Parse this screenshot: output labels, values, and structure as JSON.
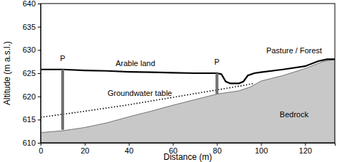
{
  "chart_data": {
    "type": "line",
    "xlabel": "Distance (m)",
    "ylabel": "Altitude (m a.s.l.)",
    "xlim": [
      0,
      133.5
    ],
    "ylim": [
      610,
      640
    ],
    "xticks": [
      0,
      20,
      40,
      60,
      80,
      100,
      120
    ],
    "yticks": [
      610,
      615,
      620,
      625,
      630,
      635,
      640
    ],
    "grid": false,
    "series": [
      {
        "type": "area",
        "color": "#c8c8c8",
        "x": [
          0,
          10,
          20,
          30,
          40,
          50,
          60,
          70,
          80,
          90,
          95,
          100,
          110,
          120,
          128,
          133.5
        ],
        "values": [
          612.2,
          612.6,
          613.3,
          614.3,
          615.6,
          616.8,
          618.1,
          619.3,
          620.5,
          621.2,
          622,
          623.3,
          624.5,
          626,
          627.5,
          628
        ]
      },
      {
        "type": "line",
        "color": "#000000",
        "line_style": "dotted",
        "x": [
          0,
          20,
          40,
          60,
          80,
          90,
          97
        ],
        "values": [
          615.5,
          616.8,
          618.2,
          619.8,
          621.4,
          622.2,
          622.8
        ]
      },
      {
        "type": "line",
        "color": "#000000",
        "line_style": "solid",
        "x": [
          0,
          10,
          20,
          30,
          40,
          50,
          60,
          70,
          80,
          82,
          84,
          86,
          90,
          92,
          94,
          97,
          100,
          110,
          120,
          126,
          130,
          133.5
        ],
        "values": [
          625.8,
          625.8,
          625.6,
          625.5,
          625.3,
          625.2,
          625.1,
          625.0,
          625.0,
          624.8,
          623.2,
          622.8,
          622.8,
          623.2,
          624.5,
          625.0,
          625.2,
          625.8,
          626.5,
          627.6,
          628,
          628
        ]
      }
    ],
    "piezometers": [
      {
        "label": "P",
        "x": 10,
        "top": 625.8,
        "bottom": 612.8,
        "color": "#707070"
      },
      {
        "label": "P",
        "x": 80,
        "top": 625.0,
        "bottom": 620.5,
        "color": "#707070"
      }
    ],
    "annotations": [
      {
        "text": "Arable land",
        "x": 43,
        "y": 626.9
      },
      {
        "text": "Pasture / Forest",
        "x": 115,
        "y": 629.8
      },
      {
        "text": "Groundwater table",
        "x": 45,
        "y": 620.6
      },
      {
        "text": "Bedrock",
        "x": 115,
        "y": 616
      }
    ]
  }
}
